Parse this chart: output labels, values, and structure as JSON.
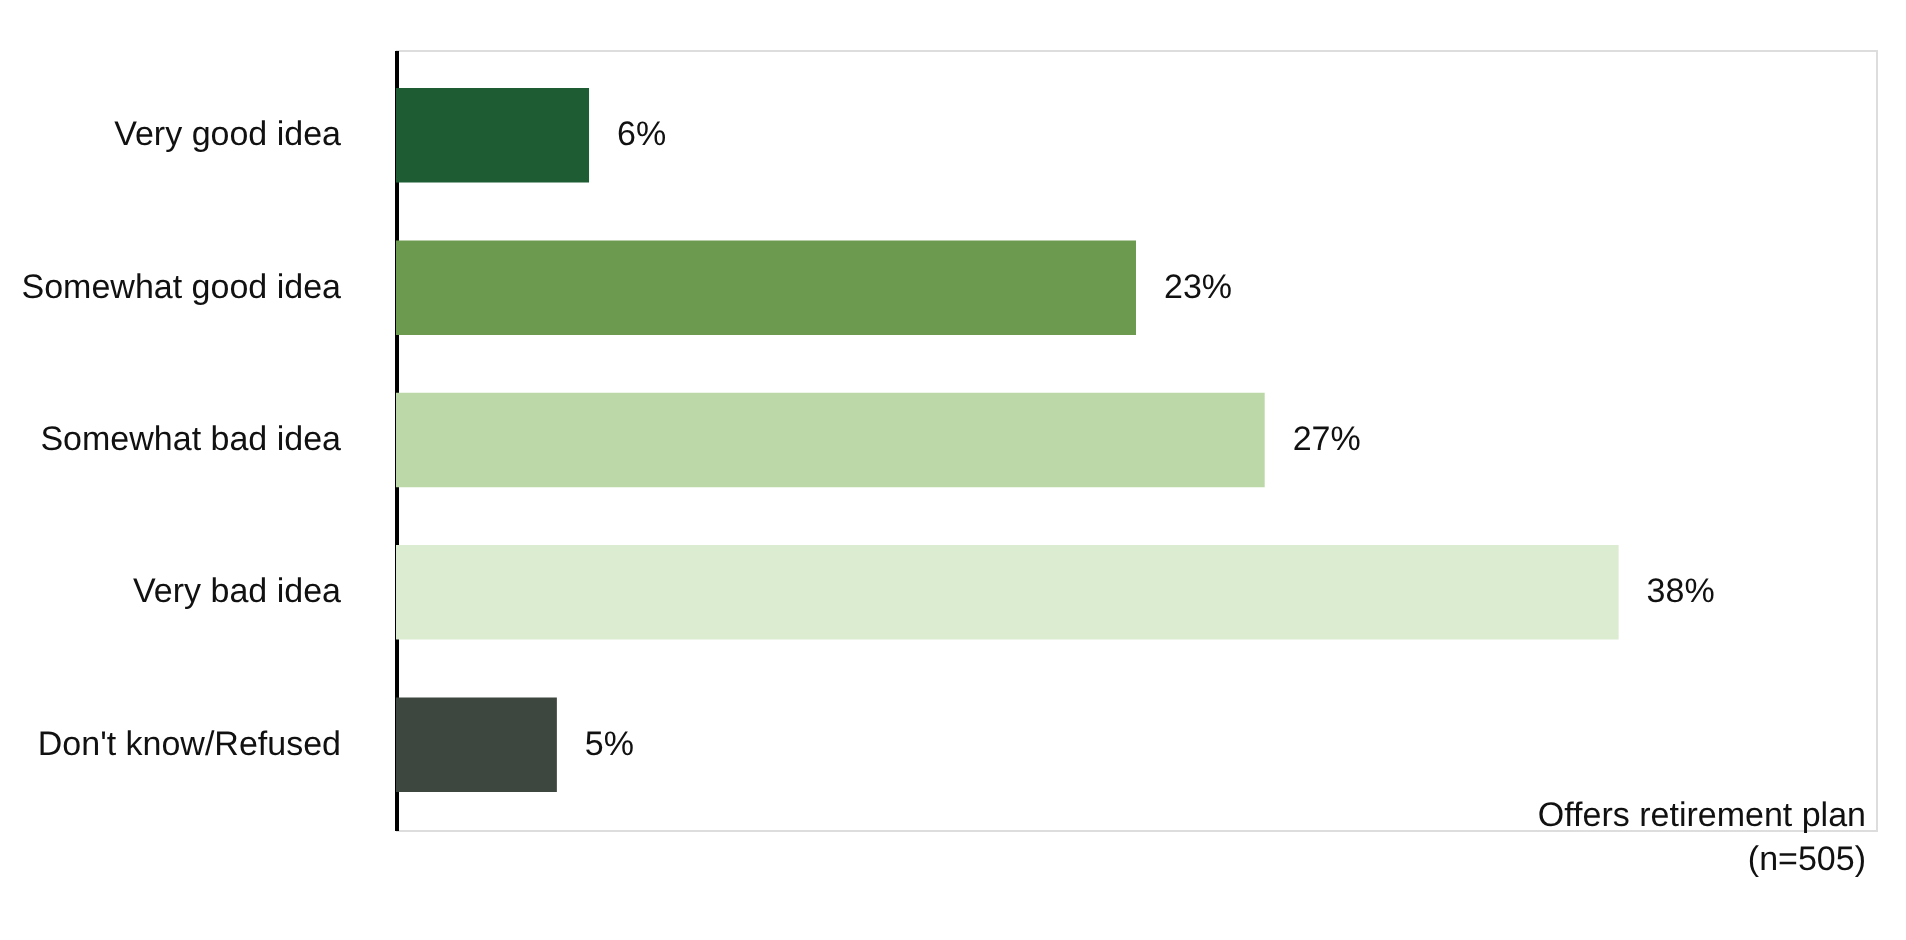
{
  "chart_data": {
    "type": "bar",
    "orientation": "horizontal",
    "categories": [
      "Very good idea",
      "Somewhat good idea",
      "Somewhat bad idea",
      "Very bad idea",
      "Don't know/Refused"
    ],
    "values": [
      6,
      23,
      27,
      38,
      5
    ],
    "colors": [
      "#1e5c34",
      "#6c9a4e",
      "#bcd8a8",
      "#dcecd1",
      "#3e4640"
    ],
    "value_labels": [
      "6%",
      "23%",
      "27%",
      "38%",
      "5%"
    ],
    "xlim": [
      0,
      46
    ],
    "tick_labels": "y",
    "grid": false,
    "annotations": [
      "Offers retirement plan\n(n=505)"
    ]
  }
}
